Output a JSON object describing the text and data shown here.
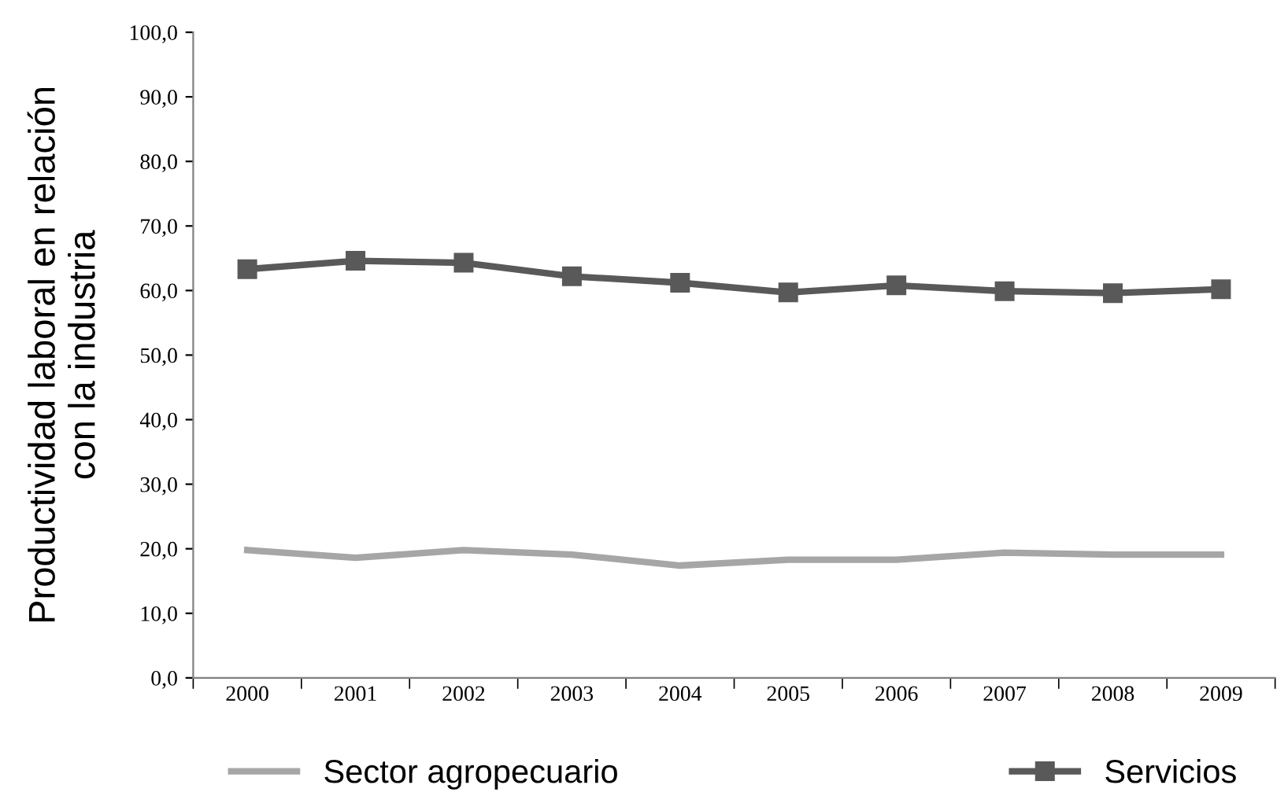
{
  "chart_data": {
    "type": "line",
    "ylabel": "Productividad laboral en relación\ncon la industria",
    "categories": [
      "2000",
      "2001",
      "2002",
      "2003",
      "2004",
      "2005",
      "2006",
      "2007",
      "2008",
      "2009"
    ],
    "series": [
      {
        "name": "Sector agropecuario",
        "color": "#a6a6a6",
        "marker": "none",
        "values": [
          19.8,
          18.6,
          19.8,
          19.1,
          17.4,
          18.3,
          18.3,
          19.4,
          19.1,
          19.1
        ]
      },
      {
        "name": "Servicios",
        "color": "#595959",
        "marker": "square",
        "values": [
          63.3,
          64.6,
          64.3,
          62.2,
          61.2,
          59.7,
          60.8,
          59.9,
          59.6,
          60.2
        ]
      }
    ],
    "ylim": [
      0,
      100
    ],
    "yticks": [
      {
        "value": 0,
        "label": "0,0"
      },
      {
        "value": 10,
        "label": "10,0"
      },
      {
        "value": 20,
        "label": "20,0"
      },
      {
        "value": 30,
        "label": "30,0"
      },
      {
        "value": 40,
        "label": "40,0"
      },
      {
        "value": 50,
        "label": "50,0"
      },
      {
        "value": 60,
        "label": "60,0"
      },
      {
        "value": 70,
        "label": "70,0"
      },
      {
        "value": 80,
        "label": "80,0"
      },
      {
        "value": 90,
        "label": "90,0"
      },
      {
        "value": 100,
        "label": "100,0"
      }
    ],
    "grid": false,
    "legend": "bottom",
    "line_style": "solid"
  }
}
